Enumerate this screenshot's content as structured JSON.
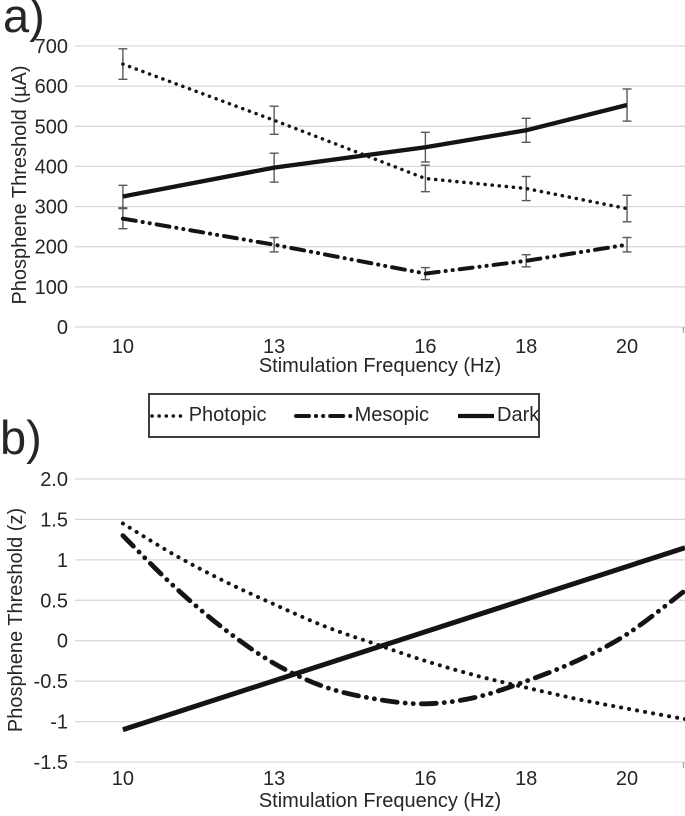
{
  "figure": {
    "panel_a_label": "a)",
    "panel_b_label": "b)"
  },
  "legend": {
    "items": [
      {
        "label": "Photopic",
        "style": "dotted"
      },
      {
        "label": "Mesopic",
        "style": "dashdotdot"
      },
      {
        "label": "Dark",
        "style": "solid"
      }
    ]
  },
  "colors": {
    "line": "#141414",
    "text": "#262626",
    "grid": "#d9d9d9",
    "error_bar": "#595959",
    "edge_tick": "#a6a6a6",
    "background": "#ffffff"
  },
  "chart_data": [
    {
      "id": "a",
      "type": "line",
      "xlabel": "Stimulation Frequency (Hz)",
      "ylabel": "Phosphene Threshold (µA)",
      "x": [
        10,
        13,
        16,
        18,
        20
      ],
      "xtick_labels": [
        "10",
        "13",
        "16",
        "18",
        "20"
      ],
      "xlim": [
        9.05,
        21.15
      ],
      "ylim": [
        0,
        700
      ],
      "yticks": [
        700,
        600,
        500,
        400,
        300,
        200,
        100,
        0
      ],
      "ytick_labels": [
        "700",
        "600",
        "500",
        "400",
        "300",
        "200",
        "100",
        "0"
      ],
      "grid": true,
      "legend_position": "below",
      "series": [
        {
          "name": "Photopic",
          "style": "dotted",
          "values": [
            655,
            515,
            370,
            345,
            295
          ],
          "error": [
            38,
            35,
            33,
            30,
            33
          ]
        },
        {
          "name": "Mesopic",
          "style": "dashdotdot",
          "values": [
            270,
            205,
            133,
            165,
            205
          ],
          "error": [
            25,
            18,
            15,
            15,
            18
          ]
        },
        {
          "name": "Dark",
          "style": "solid",
          "values": [
            325,
            397,
            448,
            490,
            553
          ],
          "error": [
            28,
            36,
            37,
            30,
            40
          ]
        }
      ]
    },
    {
      "id": "b",
      "type": "line",
      "xlabel": "Stimulation Frequency (Hz)",
      "ylabel": "Phosphene Threshold (z)",
      "xticks": [
        10,
        13,
        16,
        18,
        20
      ],
      "xtick_labels": [
        "10",
        "13",
        "16",
        "18",
        "20"
      ],
      "xlim": [
        9.05,
        21.15
      ],
      "ylim": [
        -1.5,
        2.0
      ],
      "yticks": [
        2.0,
        1.5,
        1,
        0.5,
        0,
        -0.5,
        -1,
        -1.5
      ],
      "ytick_labels": [
        "2.0",
        "1.5",
        "1",
        "0.5",
        "0",
        "-0.5",
        "-1",
        "-1.5"
      ],
      "grid": true,
      "series": [
        {
          "name": "Photopic",
          "style": "dotted",
          "points": [
            [
              10,
              1.45
            ],
            [
              11,
              1.07
            ],
            [
              12,
              0.74
            ],
            [
              13,
              0.45
            ],
            [
              14,
              0.18
            ],
            [
              15,
              -0.04
            ],
            [
              16,
              -0.25
            ],
            [
              17,
              -0.43
            ],
            [
              18,
              -0.58
            ],
            [
              19,
              -0.72
            ],
            [
              20,
              -0.84
            ],
            [
              21.15,
              -0.97
            ]
          ]
        },
        {
          "name": "Mesopic",
          "style": "dashdotdot",
          "points": [
            [
              10,
              1.3
            ],
            [
              11,
              0.68
            ],
            [
              12,
              0.15
            ],
            [
              13,
              -0.28
            ],
            [
              14,
              -0.57
            ],
            [
              15,
              -0.72
            ],
            [
              16,
              -0.78
            ],
            [
              17,
              -0.7
            ],
            [
              18,
              -0.5
            ],
            [
              19,
              -0.25
            ],
            [
              20,
              0.08
            ],
            [
              21.15,
              0.62
            ]
          ]
        },
        {
          "name": "Dark",
          "style": "solid",
          "points": [
            [
              10,
              -1.1
            ],
            [
              21.15,
              1.15
            ]
          ]
        }
      ]
    }
  ]
}
